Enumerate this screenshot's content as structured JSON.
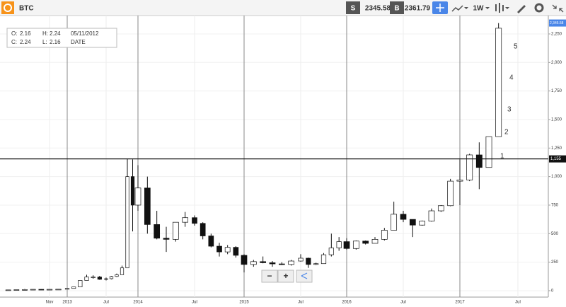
{
  "header": {
    "symbol": "BTC",
    "sell_label": "S",
    "sell_price": "2345.58",
    "buy_label": "B",
    "buy_price": "2361.79",
    "interval": "1W"
  },
  "info_box": {
    "open_label": "O:",
    "open": "2.16",
    "high_label": "H:",
    "high": "2.24",
    "date": "05/11/2012",
    "close_label": "C:",
    "close": "2.24",
    "low_label": "L:",
    "low": "2.16",
    "date_label": "DATE"
  },
  "zoom": {
    "out": "−",
    "in": "+"
  },
  "chart_data": {
    "type": "candlestick",
    "x": [
      "2012-06",
      "2012-07",
      "2012-08",
      "2012-09",
      "2012-10",
      "2012-11",
      "2012-12",
      "2013-01",
      "2013-02",
      "2013-03",
      "2013-04",
      "2013-05",
      "2013-06",
      "2013-07",
      "2013-08",
      "2013-09",
      "2013-10",
      "2013-11",
      "2013-12",
      "2014-01",
      "2014-02",
      "2014-03",
      "2014-04",
      "2014-05",
      "2014-06",
      "2014-07",
      "2014-08",
      "2014-09",
      "2014-10",
      "2014-11",
      "2014-12",
      "2015-01",
      "2015-02",
      "2015-03",
      "2015-04",
      "2015-05",
      "2015-06",
      "2015-07",
      "2015-08",
      "2015-09",
      "2015-10",
      "2015-11",
      "2015-12",
      "2016-01",
      "2016-02",
      "2016-03",
      "2016-04",
      "2016-05",
      "2016-06",
      "2016-07",
      "2016-08",
      "2016-09",
      "2016-10",
      "2016-11",
      "2016-12",
      "2017-01",
      "2017-02",
      "2017-03",
      "2017-04",
      "2017-05"
    ],
    "open": [
      5,
      7,
      9,
      10,
      12,
      11,
      12,
      13,
      20,
      33,
      90,
      120,
      120,
      100,
      105,
      125,
      140,
      200,
      1000,
      750,
      900,
      580,
      460,
      450,
      600,
      640,
      590,
      480,
      390,
      340,
      380,
      310,
      230,
      255,
      245,
      235,
      230,
      260,
      285,
      230,
      237,
      315,
      375,
      430,
      370,
      435,
      415,
      450,
      530,
      670,
      625,
      575,
      610,
      700,
      745,
      960,
      970,
      1190,
      1080,
      1350
    ],
    "high": [
      7,
      9,
      15,
      12,
      13,
      13,
      14,
      20,
      33,
      90,
      140,
      135,
      130,
      115,
      130,
      150,
      220,
      1155,
      1150,
      1100,
      1000,
      700,
      560,
      600,
      690,
      660,
      600,
      500,
      420,
      400,
      390,
      320,
      270,
      300,
      260,
      250,
      270,
      320,
      290,
      245,
      330,
      500,
      470,
      460,
      440,
      440,
      470,
      550,
      780,
      700,
      625,
      615,
      720,
      750,
      980,
      1150,
      1200,
      1300,
      1350,
      2345
    ],
    "low": [
      5,
      7,
      8,
      10,
      10,
      10,
      12,
      13,
      20,
      33,
      90,
      105,
      95,
      90,
      100,
      120,
      140,
      200,
      520,
      700,
      500,
      450,
      340,
      430,
      560,
      570,
      450,
      380,
      300,
      320,
      290,
      160,
      210,
      240,
      210,
      225,
      220,
      255,
      200,
      225,
      235,
      300,
      350,
      360,
      360,
      405,
      415,
      440,
      530,
      600,
      470,
      570,
      605,
      690,
      740,
      750,
      960,
      890,
      1080,
      1350
    ],
    "close": [
      7,
      9,
      10,
      12,
      11,
      12,
      13,
      20,
      33,
      90,
      120,
      120,
      100,
      105,
      125,
      140,
      200,
      1000,
      750,
      900,
      580,
      460,
      450,
      600,
      640,
      590,
      480,
      390,
      340,
      380,
      310,
      230,
      255,
      245,
      235,
      230,
      260,
      285,
      230,
      237,
      315,
      375,
      430,
      370,
      435,
      415,
      450,
      530,
      670,
      625,
      575,
      610,
      700,
      745,
      960,
      970,
      1190,
      1080,
      1350,
      2300
    ],
    "up_color": "#ffffff",
    "down_color": "#111111",
    "ylim": [
      -56,
      2411
    ],
    "yticks": [
      0,
      250,
      500,
      750,
      {
        "value": 1000,
        "label": "1,000"
      },
      {
        "value": 1250,
        "label": "1,250"
      },
      {
        "value": 1500,
        "label": "1,500"
      },
      {
        "value": 1750,
        "label": "1,750"
      },
      {
        "value": 2000,
        "label": "2,000"
      },
      {
        "value": 2250,
        "label": "2,250"
      }
    ],
    "xlim": [
      "2012-05",
      "2017-10"
    ],
    "xticks": [
      {
        "value": "2012-11",
        "label": "Nov"
      },
      {
        "value": "2013-01",
        "label": "2013"
      },
      {
        "value": "2013-07",
        "label": "Jul"
      },
      {
        "value": "2014-01",
        "label": "2014"
      },
      {
        "value": "2014-07",
        "label": "Jul"
      },
      {
        "value": "2015-01",
        "label": "2015"
      },
      {
        "value": "2015-07",
        "label": "Jul"
      },
      {
        "value": "2016-01",
        "label": "2016"
      },
      {
        "value": "2016-07",
        "label": "Jul"
      },
      {
        "value": "2017-01",
        "label": "2017"
      },
      {
        "value": "2017-07",
        "label": "Jul"
      }
    ],
    "hline": {
      "value": 1155,
      "label": "1,155"
    },
    "last_price": {
      "value": 2345.58,
      "label": "2,345.58"
    },
    "annotations": [
      "1",
      "2",
      "3",
      "4",
      "5"
    ]
  }
}
